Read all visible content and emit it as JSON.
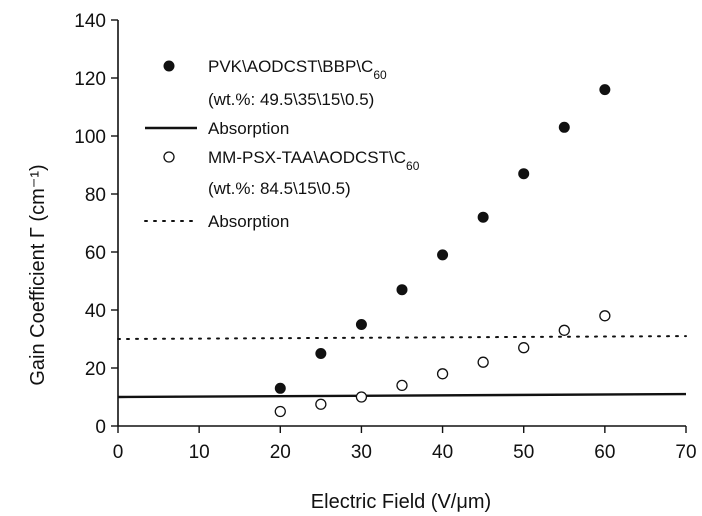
{
  "chart_data": {
    "type": "scatter",
    "xlabel": "Electric Field (V/μm)",
    "ylabel": "Gain Coefficient Γ (cm⁻¹)",
    "xlim": [
      0,
      70
    ],
    "ylim": [
      0,
      140
    ],
    "xticks": [
      0,
      10,
      20,
      30,
      40,
      50,
      60,
      70
    ],
    "yticks": [
      0,
      20,
      40,
      60,
      80,
      100,
      120,
      140
    ],
    "grid": false,
    "legend_placement": "top-left",
    "series": [
      {
        "name": "PVK\\AODCST\\BBP\\C60",
        "composition": "(wt.%: 49.5\\35\\15\\0.5)",
        "marker": "filled-circle",
        "x": [
          20,
          25,
          30,
          35,
          40,
          45,
          50,
          55,
          60
        ],
        "y": [
          13,
          25,
          35,
          47,
          59,
          72,
          87,
          103,
          116
        ]
      },
      {
        "name": "Absorption",
        "marker": "solid-line",
        "x": [
          0,
          70
        ],
        "y": [
          10,
          11
        ]
      },
      {
        "name": "MM-PSX-TAA\\AODCST\\C60",
        "composition": "(wt.%: 84.5\\15\\0.5)",
        "marker": "open-circle",
        "x": [
          20,
          25,
          30,
          35,
          40,
          45,
          50,
          55,
          60
        ],
        "y": [
          5,
          7.5,
          10,
          14,
          18,
          22,
          27,
          33,
          38
        ]
      },
      {
        "name": "Absorption",
        "marker": "dotted-line",
        "x": [
          0,
          70
        ],
        "y": [
          30,
          31
        ]
      }
    ]
  }
}
